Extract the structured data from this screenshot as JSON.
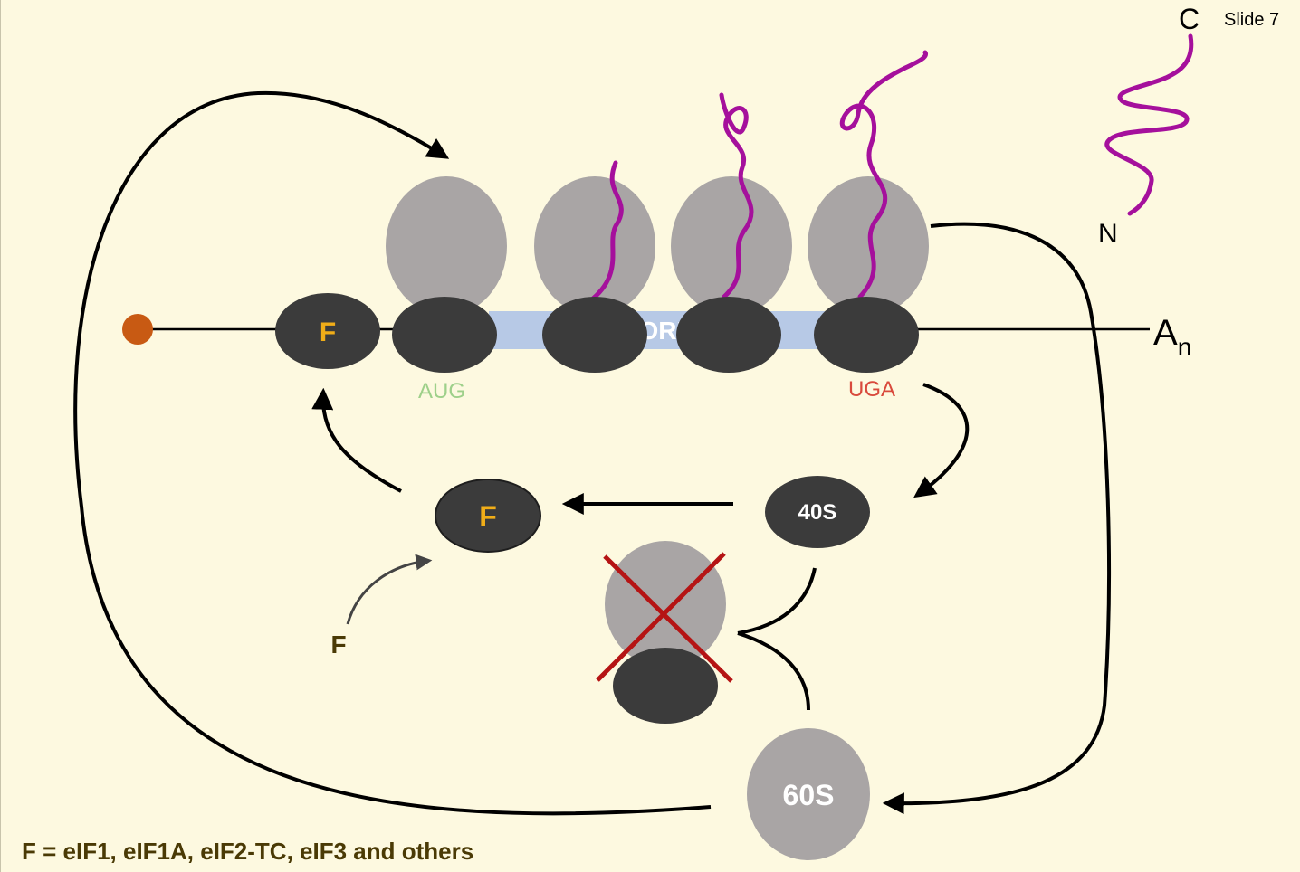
{
  "slide_label": "Slide 7",
  "mrna": {
    "orf_label": "ORF",
    "start_codon": "AUG",
    "stop_codon": "UGA",
    "poly_a_base": "A",
    "poly_a_sub": "n"
  },
  "peptide": {
    "c_terminus": "C",
    "n_terminus": "N"
  },
  "factor_symbol": "F",
  "subunits": {
    "small": "40S",
    "large": "60S"
  },
  "legend": "F = eIF1, eIF1A, eIF2-TC, eIF3 and others",
  "colors": {
    "background": "#fdf9e0",
    "small_subunit": "#3b3b3b",
    "large_subunit": "#a9a5a5",
    "orf_band": "#b7c9e6",
    "peptide": "#a5109c",
    "cap": "#c85a13",
    "factor_text": "#f0ad18",
    "aug_text": "#9ed08a",
    "uga_text": "#d94a3c",
    "cross": "#b51414",
    "legend_text": "#4a3a05",
    "arrow": "#000000"
  }
}
